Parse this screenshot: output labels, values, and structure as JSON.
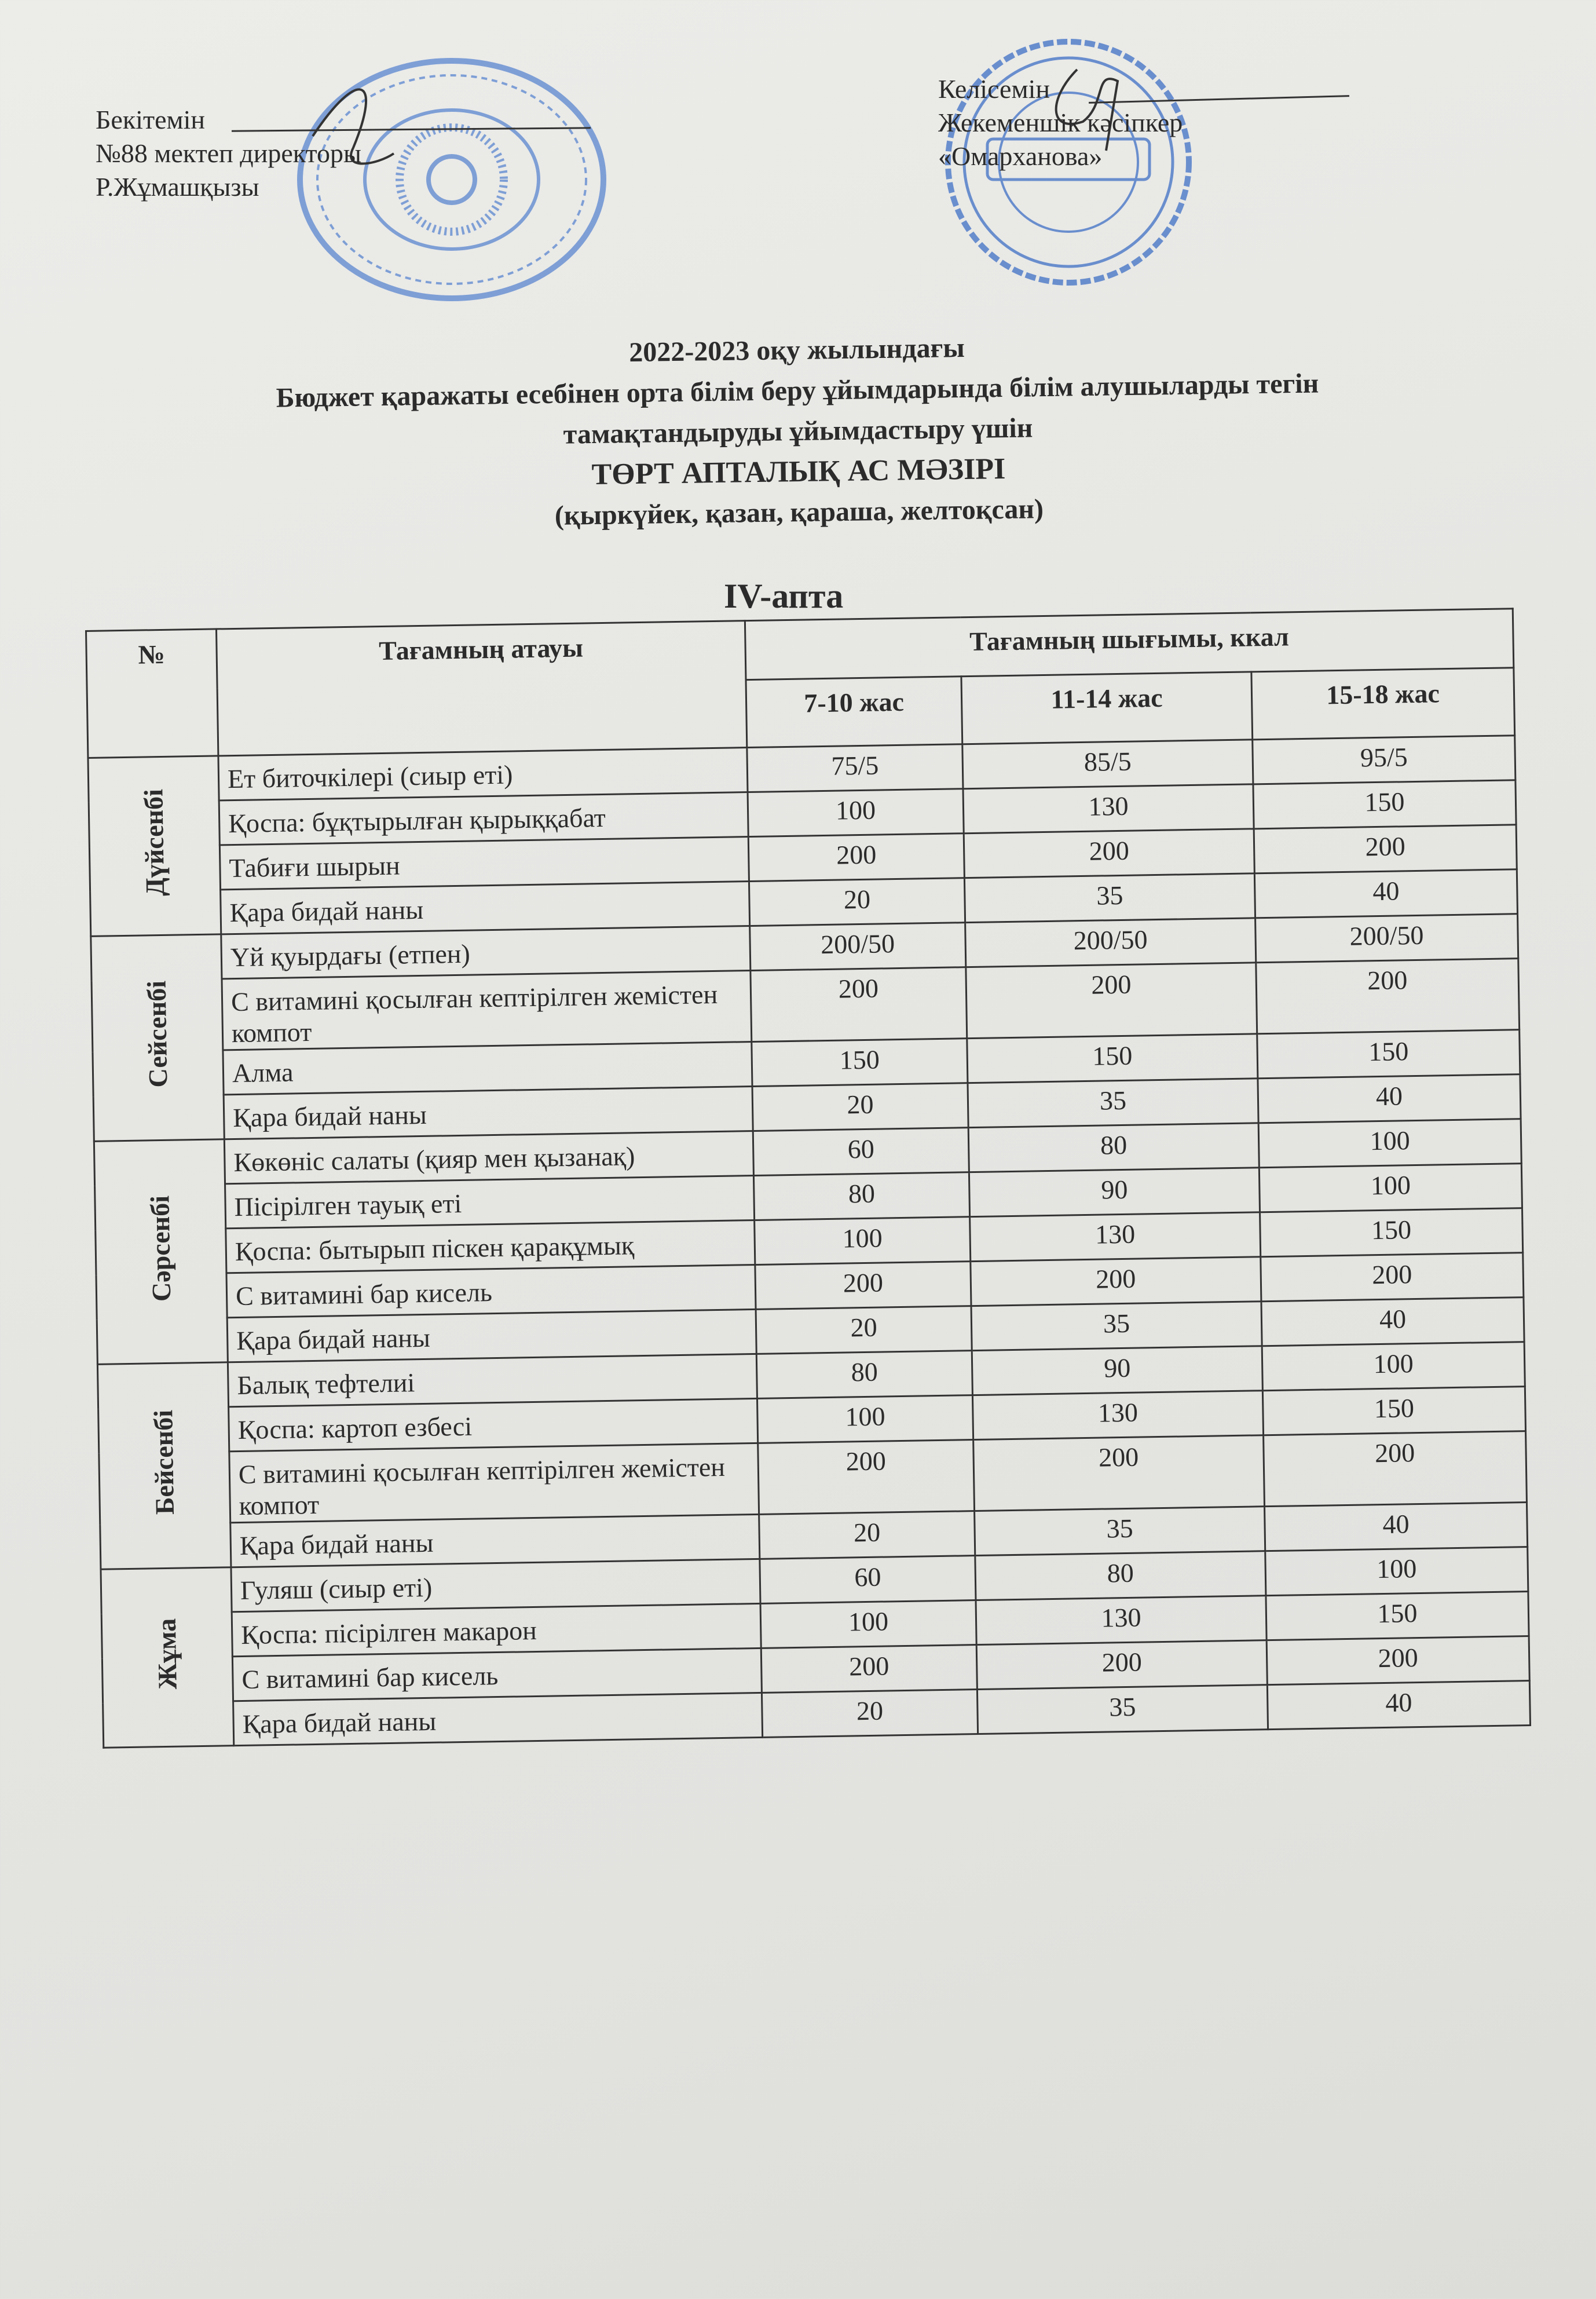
{
  "approval": {
    "label": "Бекітемін",
    "position": "№88 мектеп директоры",
    "name": "Р.Жұмашқызы",
    "stamp_text": "Алматы қаласы білім басқармасы коммуналдық мемлекеттік мекемесі"
  },
  "agreement": {
    "label": "Келісемін",
    "position": "Жекеменшік кәсіпкер",
    "name": "«Омарханова»",
    "stamp_text": "ИП Омарханова, Индивидуальный предприниматель, 3"
  },
  "titles": {
    "line1": "2022-2023 оқу жылындағы",
    "line2": "Бюджет қаражаты есебінен орта білім беру ұйымдарында білім алушыларды тегін",
    "line3": "тамақтандыруды ұйымдастыру үшін",
    "line4": "ТӨРТ АПТАЛЫҚ АС МӘЗІРІ",
    "line5": "(қыркүйек, қазан, қараша, желтоқсан)"
  },
  "week": "IV-апта",
  "table": {
    "headers": {
      "no": "№",
      "name": "Тағамның атауы",
      "yield": "Тағамның шығымы, ккал",
      "ages": [
        "7-10 жас",
        "11-14 жас",
        "15-18 жас"
      ]
    },
    "days": [
      {
        "day": "Дүйсенбі",
        "rows": [
          {
            "name": "Ет биточкілері (сиыр еті)",
            "v": [
              "75/5",
              "85/5",
              "95/5"
            ]
          },
          {
            "name": "Қоспа: бұқтырылған қырыққабат",
            "v": [
              "100",
              "130",
              "150"
            ]
          },
          {
            "name": "Табиғи шырын",
            "v": [
              "200",
              "200",
              "200"
            ]
          },
          {
            "name": "Қара бидай наны",
            "v": [
              "20",
              "35",
              "40"
            ]
          }
        ]
      },
      {
        "day": "Сейсенбі",
        "rows": [
          {
            "name": "Үй қуырдағы (етпен)",
            "v": [
              "200/50",
              "200/50",
              "200/50"
            ]
          },
          {
            "name": "С витамині қосылған кептірілген жемістен компот",
            "v": [
              "200",
              "200",
              "200"
            ]
          },
          {
            "name": "Алма",
            "v": [
              "150",
              "150",
              "150"
            ]
          },
          {
            "name": "Қара бидай наны",
            "v": [
              "20",
              "35",
              "40"
            ]
          }
        ]
      },
      {
        "day": "Сәрсенбі",
        "rows": [
          {
            "name": "Көкөніс салаты (қияр мен қызанақ)",
            "v": [
              "60",
              "80",
              "100"
            ]
          },
          {
            "name": "Пісірілген тауық еті",
            "v": [
              "80",
              "90",
              "100"
            ]
          },
          {
            "name": "Қоспа: бытырып піскен қарақұмық",
            "v": [
              "100",
              "130",
              "150"
            ]
          },
          {
            "name": "С витамині бар кисель",
            "v": [
              "200",
              "200",
              "200"
            ]
          },
          {
            "name": "Қара бидай наны",
            "v": [
              "20",
              "35",
              "40"
            ]
          }
        ]
      },
      {
        "day": "Бейсенбі",
        "rows": [
          {
            "name": "Балық тефтелиі",
            "v": [
              "80",
              "90",
              "100"
            ]
          },
          {
            "name": "Қоспа:  картоп езбесі",
            "v": [
              "100",
              "130",
              "150"
            ]
          },
          {
            "name": "С витамині қосылған кептірілген жемістен компот",
            "v": [
              "200",
              "200",
              "200"
            ]
          },
          {
            "name": "Қара бидай наны",
            "v": [
              "20",
              "35",
              "40"
            ]
          }
        ]
      },
      {
        "day": "Жұма",
        "rows": [
          {
            "name": "Гуляш (сиыр еті)",
            "v": [
              "60",
              "80",
              "100"
            ]
          },
          {
            "name": "Қоспа:  пісірілген макарон",
            "v": [
              "100",
              "130",
              "150"
            ]
          },
          {
            "name": "С витамині бар кисель",
            "v": [
              "200",
              "200",
              "200"
            ]
          },
          {
            "name": "Қара бидай наны",
            "v": [
              "20",
              "35",
              "40"
            ]
          }
        ]
      }
    ]
  },
  "colors": {
    "ink": "#2b2b2b",
    "stamp": "#4a78c8"
  }
}
